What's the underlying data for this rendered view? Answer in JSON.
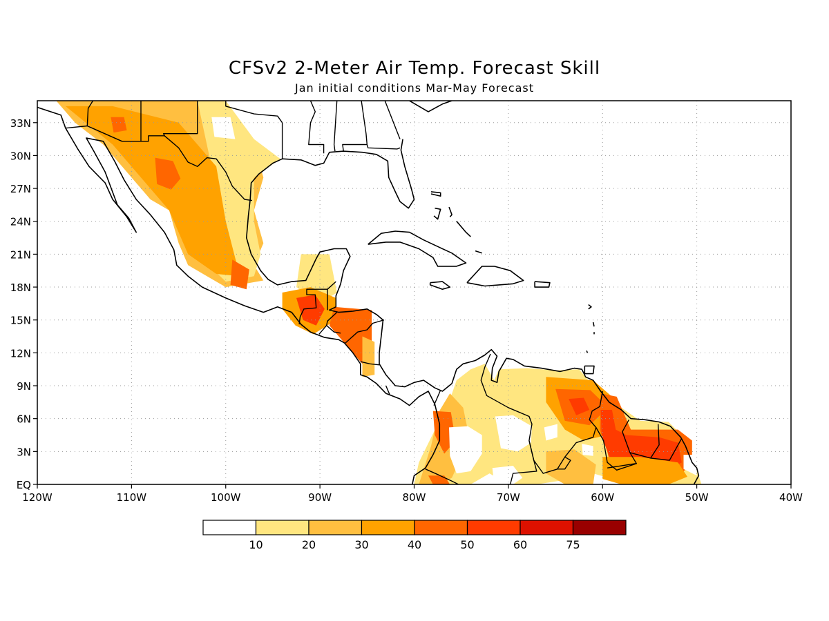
{
  "title": "CFSv2 2-Meter Air Temp. Forecast Skill",
  "subtitle": "Jan initial conditions  Mar-May Forecast",
  "chart_data": {
    "type": "heatmap",
    "projection": "lat-lon",
    "lon_range": [
      -120,
      -40
    ],
    "lat_range": [
      0,
      35
    ],
    "grid": "dotted",
    "lon_ticks": [
      {
        "value": -120,
        "label": "120W"
      },
      {
        "value": -110,
        "label": "110W"
      },
      {
        "value": -100,
        "label": "100W"
      },
      {
        "value": -90,
        "label": "90W"
      },
      {
        "value": -80,
        "label": "80W"
      },
      {
        "value": -70,
        "label": "70W"
      },
      {
        "value": -60,
        "label": "60W"
      },
      {
        "value": -50,
        "label": "50W"
      },
      {
        "value": -40,
        "label": "40W"
      }
    ],
    "lat_ticks": [
      {
        "value": 0,
        "label": "EQ"
      },
      {
        "value": 3,
        "label": "3N"
      },
      {
        "value": 6,
        "label": "6N"
      },
      {
        "value": 9,
        "label": "9N"
      },
      {
        "value": 12,
        "label": "12N"
      },
      {
        "value": 15,
        "label": "15N"
      },
      {
        "value": 18,
        "label": "18N"
      },
      {
        "value": 21,
        "label": "21N"
      },
      {
        "value": 24,
        "label": "24N"
      },
      {
        "value": 27,
        "label": "27N"
      },
      {
        "value": 30,
        "label": "30N"
      },
      {
        "value": 33,
        "label": "33N"
      }
    ],
    "colorbar": {
      "placement": "bottom",
      "bins": [
        {
          "color": "#ffffff"
        },
        {
          "color": "#ffe680"
        },
        {
          "color": "#ffbf40"
        },
        {
          "color": "#ffa200"
        },
        {
          "color": "#ff6600"
        },
        {
          "color": "#ff3b00"
        },
        {
          "color": "#dd1100"
        },
        {
          "color": "#990000"
        }
      ],
      "labels": [
        "10",
        "20",
        "30",
        "40",
        "50",
        "60",
        "75"
      ]
    },
    "regions": [
      {
        "name": "mexico-north",
        "level": 2,
        "poly": [
          [
            -118,
            35
          ],
          [
            -112,
            35
          ],
          [
            -103,
            35
          ],
          [
            -97,
            31
          ],
          [
            -96,
            28
          ],
          [
            -97,
            25
          ],
          [
            -96,
            22
          ],
          [
            -97,
            20
          ],
          [
            -96,
            18.6
          ],
          [
            -100,
            18
          ],
          [
            -102,
            19
          ],
          [
            -104,
            20
          ],
          [
            -105,
            22
          ],
          [
            -106,
            25
          ],
          [
            -108,
            26
          ],
          [
            -110,
            28
          ],
          [
            -113,
            31
          ],
          [
            -116,
            33
          ]
        ]
      },
      {
        "name": "mexico-north-band",
        "level": 1,
        "poly": [
          [
            -103,
            35
          ],
          [
            -100,
            35
          ],
          [
            -97,
            31.5
          ],
          [
            -94.2,
            29.7
          ],
          [
            -97,
            28
          ],
          [
            -97,
            24
          ],
          [
            -96.3,
            21
          ],
          [
            -97,
            19
          ],
          [
            -100,
            18.5
          ],
          [
            -103,
            21
          ],
          [
            -101,
            27
          ]
        ]
      },
      {
        "name": "mexico-core",
        "level": 3,
        "poly": [
          [
            -117,
            34.5
          ],
          [
            -112,
            34.5
          ],
          [
            -105,
            33
          ],
          [
            -101,
            29
          ],
          [
            -100,
            24
          ],
          [
            -98.5,
            19
          ],
          [
            -101,
            19.2
          ],
          [
            -104,
            21
          ],
          [
            -106,
            25
          ],
          [
            -109,
            28
          ],
          [
            -112,
            31
          ]
        ]
      },
      {
        "name": "mexico-chihuahua",
        "level": 4,
        "poly": [
          [
            -107.5,
            29.8
          ],
          [
            -105.6,
            29.5
          ],
          [
            -104.8,
            27.9
          ],
          [
            -105.8,
            26.9
          ],
          [
            -107.3,
            27.4
          ]
        ]
      },
      {
        "name": "mexico-sonora",
        "level": 4,
        "poly": [
          [
            -112.2,
            33.5
          ],
          [
            -110.8,
            33.5
          ],
          [
            -110.5,
            32.3
          ],
          [
            -111.9,
            32.1
          ]
        ]
      },
      {
        "name": "mexico-south",
        "level": 4,
        "poly": [
          [
            -99.3,
            20.5
          ],
          [
            -97.5,
            19.6
          ],
          [
            -97.8,
            17.8
          ],
          [
            -99.5,
            18.2
          ]
        ]
      },
      {
        "name": "yucatan",
        "level": 1,
        "poly": [
          [
            -92,
            21
          ],
          [
            -89,
            21
          ],
          [
            -88.2,
            17.5
          ],
          [
            -90,
            16.5
          ],
          [
            -92.5,
            18
          ]
        ]
      },
      {
        "name": "guatemala",
        "level": 3,
        "poly": [
          [
            -94,
            17.5
          ],
          [
            -91,
            18
          ],
          [
            -88.3,
            17
          ],
          [
            -88.3,
            15
          ],
          [
            -90.7,
            13.7
          ],
          [
            -92.6,
            14.5
          ],
          [
            -94,
            16
          ]
        ]
      },
      {
        "name": "guatemala-core",
        "level": 5,
        "poly": [
          [
            -92.5,
            17
          ],
          [
            -90.5,
            17.3
          ],
          [
            -89.5,
            16
          ],
          [
            -90.4,
            14.5
          ],
          [
            -91.8,
            15
          ]
        ]
      },
      {
        "name": "honduras",
        "level": 4,
        "poly": [
          [
            -88.5,
            16.2
          ],
          [
            -84.5,
            15.9
          ],
          [
            -84.5,
            12.5
          ],
          [
            -85.5,
            11
          ],
          [
            -87.5,
            13
          ],
          [
            -89,
            14.5
          ]
        ]
      },
      {
        "name": "nicaragua",
        "level": 2,
        "poly": [
          [
            -85.5,
            13.5
          ],
          [
            -84.2,
            13
          ],
          [
            -84.2,
            10
          ],
          [
            -85.5,
            9.8
          ]
        ]
      },
      {
        "name": "venezuela-colombia",
        "level": 1,
        "poly": [
          [
            -80,
            0
          ],
          [
            -79.5,
            2
          ],
          [
            -77.5,
            5.5
          ],
          [
            -76.5,
            7
          ],
          [
            -75.5,
            9.5
          ],
          [
            -74,
            10.5
          ],
          [
            -72.5,
            11
          ],
          [
            -71.5,
            9.5
          ],
          [
            -71,
            10.5
          ],
          [
            -68,
            10.6
          ],
          [
            -65,
            10.4
          ],
          [
            -62.5,
            10.5
          ],
          [
            -60.5,
            8.5
          ],
          [
            -58,
            7
          ],
          [
            -56,
            5.8
          ],
          [
            -53,
            5.7
          ],
          [
            -51,
            4
          ],
          [
            -49.5,
            0
          ],
          [
            -56,
            0
          ],
          [
            -59,
            0.5
          ],
          [
            -61,
            1
          ],
          [
            -63,
            2
          ],
          [
            -64,
            0.4
          ],
          [
            -67,
            0
          ],
          [
            -70,
            0
          ],
          [
            -72,
            1
          ],
          [
            -74,
            0
          ]
        ]
      },
      {
        "name": "colombia-west",
        "level": 2,
        "poly": [
          [
            -79.5,
            0
          ],
          [
            -78.2,
            3.5
          ],
          [
            -77.4,
            6.6
          ],
          [
            -76.2,
            8.3
          ],
          [
            -74.8,
            7
          ],
          [
            -74.2,
            4.5
          ],
          [
            -75,
            2.5
          ],
          [
            -76,
            0.6
          ],
          [
            -77.5,
            0
          ]
        ]
      },
      {
        "name": "colombia-core",
        "level": 4,
        "poly": [
          [
            -78,
            6.7
          ],
          [
            -76.1,
            6.6
          ],
          [
            -75.6,
            4
          ],
          [
            -76.8,
            2.8
          ],
          [
            -77.8,
            4.5
          ]
        ]
      },
      {
        "name": "venezuela-east",
        "level": 3,
        "poly": [
          [
            -66,
            9.8
          ],
          [
            -61,
            9.5
          ],
          [
            -59,
            8
          ],
          [
            -58,
            6
          ],
          [
            -59.5,
            4.5
          ],
          [
            -62,
            4
          ],
          [
            -64,
            5
          ],
          [
            -66,
            7.5
          ]
        ]
      },
      {
        "name": "venezuela-east-core",
        "level": 4,
        "poly": [
          [
            -65,
            8.7
          ],
          [
            -61.3,
            8.6
          ],
          [
            -59.4,
            7
          ],
          [
            -61.4,
            5.4
          ],
          [
            -64,
            5.8
          ]
        ]
      },
      {
        "name": "venezuela-east-inner",
        "level": 5,
        "poly": [
          [
            -63.6,
            7.8
          ],
          [
            -62,
            7.9
          ],
          [
            -61.4,
            6.8
          ],
          [
            -62.8,
            6.3
          ]
        ]
      },
      {
        "name": "guianas",
        "level": 4,
        "poly": [
          [
            -60.2,
            8.3
          ],
          [
            -58.5,
            8
          ],
          [
            -57.5,
            6
          ],
          [
            -57,
            5
          ],
          [
            -52,
            5
          ],
          [
            -50.5,
            4
          ],
          [
            -50.5,
            2
          ],
          [
            -51.6,
            1
          ],
          [
            -53.5,
            0
          ],
          [
            -58,
            0
          ],
          [
            -59,
            1
          ],
          [
            -59.5,
            3
          ],
          [
            -60.3,
            5
          ]
        ]
      },
      {
        "name": "guianas-core",
        "level": 5,
        "poly": [
          [
            -60.2,
            6.8
          ],
          [
            -59,
            6.8
          ],
          [
            -58.6,
            5
          ],
          [
            -57.5,
            4.5
          ],
          [
            -54,
            4.3
          ],
          [
            -52,
            3.8
          ],
          [
            -51.6,
            2
          ],
          [
            -53.5,
            1.2
          ],
          [
            -56.5,
            1.1
          ],
          [
            -58,
            1
          ],
          [
            -59,
            2
          ],
          [
            -59.5,
            3
          ],
          [
            -60.1,
            4.5
          ]
        ]
      },
      {
        "name": "amazon-north",
        "level": 3,
        "poly": [
          [
            -60,
            2.5
          ],
          [
            -56,
            2.5
          ],
          [
            -52,
            2
          ],
          [
            -51,
            0.7
          ],
          [
            -53,
            0
          ],
          [
            -58,
            0
          ],
          [
            -60,
            0.5
          ]
        ]
      },
      {
        "name": "amazon-roraima",
        "level": 2,
        "poly": [
          [
            -66,
            3
          ],
          [
            -63,
            3.2
          ],
          [
            -60.7,
            1.8
          ],
          [
            -61,
            0
          ],
          [
            -64,
            0
          ],
          [
            -66,
            1
          ]
        ]
      },
      {
        "name": "colombia-south",
        "level": 4,
        "poly": [
          [
            -78.5,
            0.8
          ],
          [
            -76.8,
            0.8
          ],
          [
            -76.2,
            0
          ],
          [
            -78,
            0
          ]
        ]
      },
      {
        "name": "hole-1",
        "level": 0,
        "poly": [
          [
            -76.3,
            5.2
          ],
          [
            -74.3,
            5.3
          ],
          [
            -72.8,
            4.5
          ],
          [
            -72.8,
            2.8
          ],
          [
            -74,
            1.2
          ],
          [
            -75.5,
            1
          ],
          [
            -76.2,
            2.6
          ]
        ]
      },
      {
        "name": "hole-2",
        "level": 0,
        "poly": [
          [
            -71.4,
            6.2
          ],
          [
            -69.5,
            6.3
          ],
          [
            -67.5,
            5.3
          ],
          [
            -67.6,
            3.8
          ],
          [
            -69,
            3
          ],
          [
            -70.8,
            3.3
          ]
        ]
      },
      {
        "name": "hole-3",
        "level": 0,
        "poly": [
          [
            -71.7,
            1.5
          ],
          [
            -69.5,
            1.7
          ],
          [
            -68.5,
            0.6
          ],
          [
            -69.5,
            0
          ],
          [
            -71.5,
            0
          ]
        ]
      },
      {
        "name": "hole-4",
        "level": 0,
        "poly": [
          [
            -66.2,
            5.2
          ],
          [
            -64.8,
            5.5
          ],
          [
            -64.8,
            4.3
          ],
          [
            -66,
            4
          ]
        ]
      },
      {
        "name": "hole-5",
        "level": 0,
        "poly": [
          [
            -62.2,
            3.7
          ],
          [
            -61,
            3.5
          ],
          [
            -61,
            2.6
          ],
          [
            -62.1,
            2.7
          ]
        ]
      },
      {
        "name": "hole-6",
        "level": 0,
        "poly": [
          [
            -51.4,
            2.7
          ],
          [
            -50,
            2.7
          ],
          [
            -50,
            0.8
          ],
          [
            -51.4,
            1.4
          ]
        ]
      },
      {
        "name": "hole-7",
        "level": 0,
        "poly": [
          [
            -101.5,
            33.5
          ],
          [
            -99.5,
            33.5
          ],
          [
            -99,
            31.5
          ],
          [
            -101.2,
            31.7
          ]
        ]
      }
    ]
  }
}
